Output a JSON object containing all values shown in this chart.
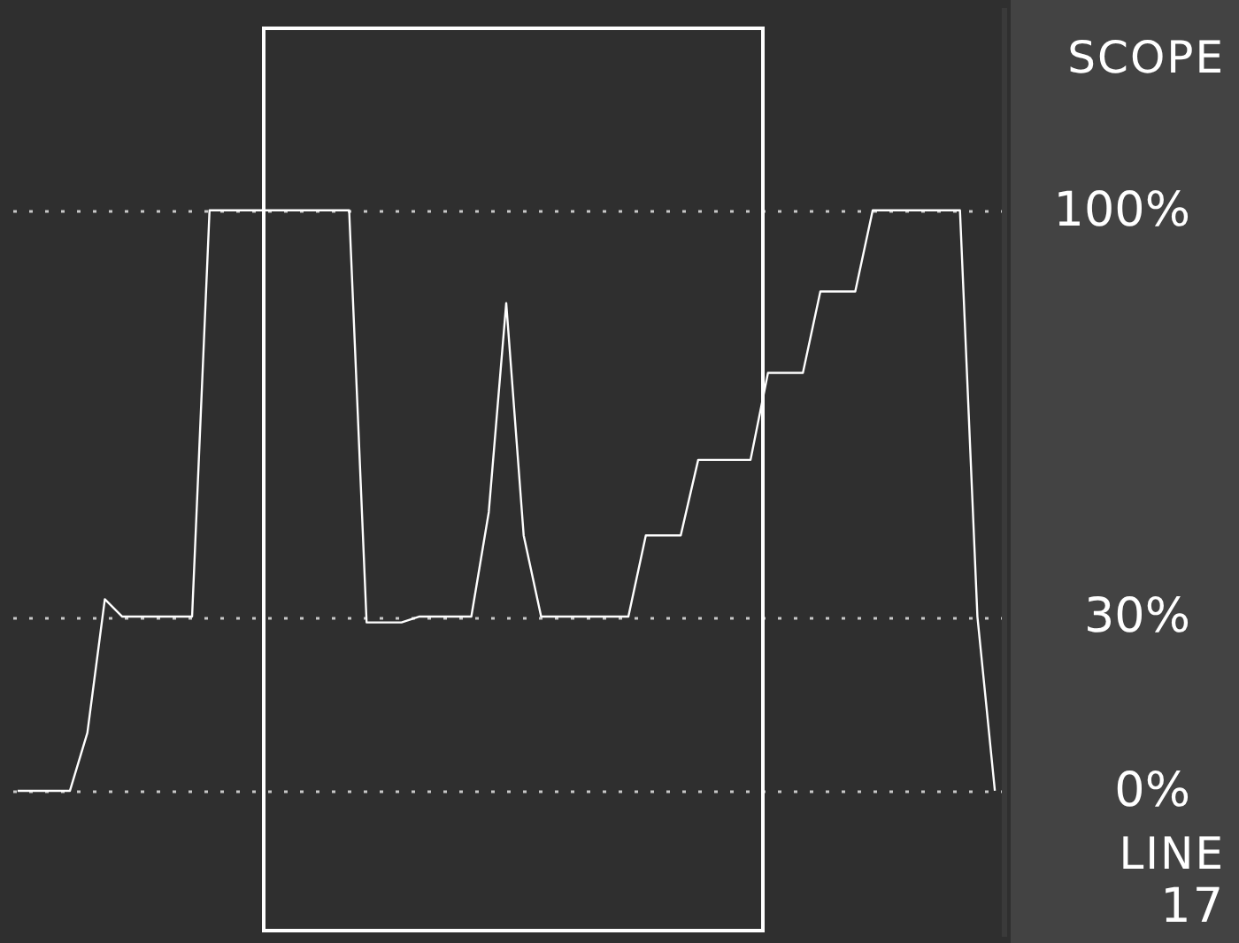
{
  "chart_data": {
    "type": "line",
    "title": "SCOPE",
    "annotations": [
      "LINE",
      "17"
    ],
    "categories": [
      null,
      null,
      null,
      null,
      null,
      null,
      null,
      null,
      null,
      null,
      null,
      null,
      null,
      null,
      null,
      null,
      null,
      null,
      null,
      null,
      null,
      null,
      null,
      null,
      null,
      null,
      null,
      null,
      null,
      null,
      null,
      null,
      null,
      null,
      null,
      null,
      null,
      null,
      null,
      null,
      null,
      null,
      null,
      null,
      null,
      null,
      null,
      null,
      null,
      null,
      null,
      null,
      null,
      null,
      null,
      null,
      null
    ],
    "series": [
      {
        "color": "#ffffff",
        "values": [
          0,
          0,
          0,
          0,
          10,
          33,
          30,
          30,
          30,
          30,
          30,
          100,
          100,
          100,
          100,
          100,
          100,
          100,
          100,
          100,
          29,
          29,
          29,
          30,
          30,
          30,
          30,
          48,
          84,
          44,
          30,
          30,
          30,
          30,
          30,
          30,
          44,
          44,
          44,
          57,
          57,
          57,
          57,
          72,
          72,
          72,
          86,
          86,
          86,
          100,
          100,
          100,
          100,
          100,
          100,
          30,
          0
        ]
      }
    ],
    "ylim": [
      -25,
      135
    ],
    "yticks": [
      {
        "value": 0,
        "label": "0%"
      },
      {
        "value": 30,
        "label": "30%"
      },
      {
        "value": 100,
        "label": "100%"
      }
    ],
    "grid": "y",
    "tick_labels": "y"
  }
}
